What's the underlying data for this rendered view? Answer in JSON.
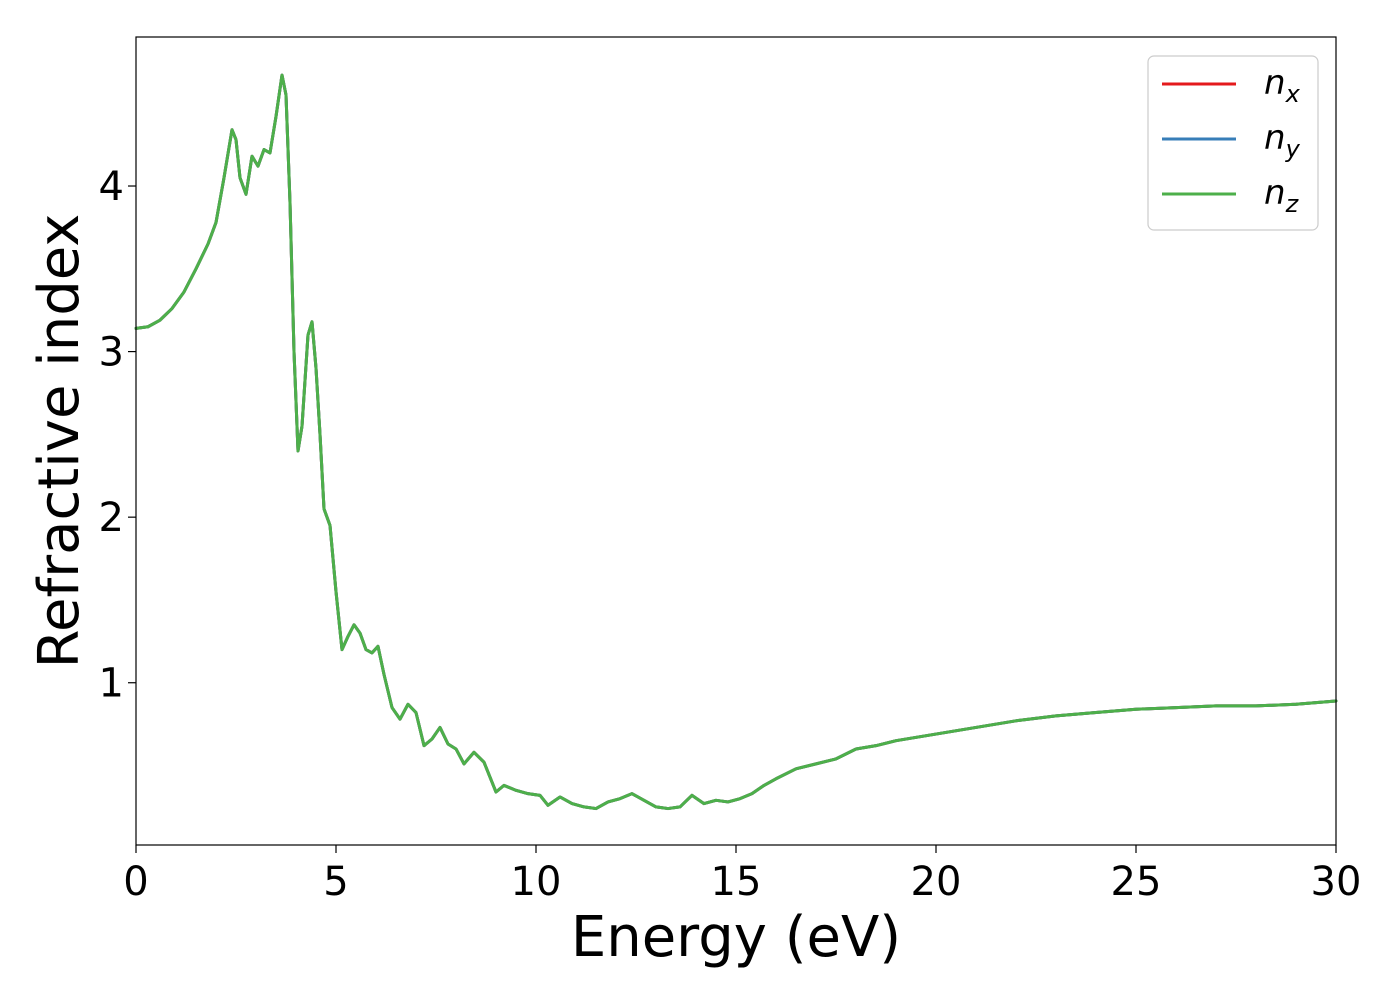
{
  "chart_data": {
    "type": "line",
    "title": "",
    "xlabel": "Energy (eV)",
    "ylabel": "Refractive index",
    "xlim": [
      0,
      30
    ],
    "ylim": [
      0.02,
      4.9
    ],
    "xticks": [
      0,
      5,
      10,
      15,
      20,
      25,
      30
    ],
    "yticks": [
      1,
      2,
      3,
      4
    ],
    "grid": false,
    "legend_position": "top-right",
    "x": [
      0,
      0.3,
      0.6,
      0.9,
      1.2,
      1.5,
      1.8,
      2.0,
      2.2,
      2.4,
      2.5,
      2.6,
      2.75,
      2.9,
      3.05,
      3.2,
      3.35,
      3.5,
      3.65,
      3.75,
      3.85,
      3.95,
      4.05,
      4.15,
      4.3,
      4.4,
      4.5,
      4.6,
      4.7,
      4.85,
      5.0,
      5.15,
      5.3,
      5.45,
      5.6,
      5.75,
      5.9,
      6.05,
      6.2,
      6.4,
      6.6,
      6.8,
      7.0,
      7.2,
      7.4,
      7.6,
      7.8,
      8.0,
      8.2,
      8.45,
      8.7,
      9.0,
      9.2,
      9.5,
      9.8,
      10.1,
      10.3,
      10.6,
      10.9,
      11.2,
      11.5,
      11.8,
      12.1,
      12.4,
      12.7,
      13.0,
      13.3,
      13.6,
      13.9,
      14.2,
      14.5,
      14.8,
      15.1,
      15.4,
      15.7,
      16.0,
      16.5,
      17.0,
      17.5,
      18.0,
      18.5,
      19.0,
      20.0,
      21.0,
      22.0,
      23.0,
      24.0,
      25.0,
      26.0,
      27.0,
      28.0,
      29.0,
      30.0
    ],
    "series": [
      {
        "name": "n_x",
        "color": "#e41a1c",
        "values": [
          3.14,
          3.15,
          3.19,
          3.26,
          3.36,
          3.5,
          3.65,
          3.78,
          4.05,
          4.34,
          4.28,
          4.05,
          3.95,
          4.18,
          4.12,
          4.22,
          4.2,
          4.42,
          4.67,
          4.55,
          3.9,
          3.0,
          2.4,
          2.55,
          3.1,
          3.18,
          2.9,
          2.5,
          2.05,
          1.95,
          1.55,
          1.2,
          1.28,
          1.35,
          1.3,
          1.2,
          1.18,
          1.22,
          1.05,
          0.85,
          0.78,
          0.87,
          0.82,
          0.62,
          0.66,
          0.73,
          0.63,
          0.6,
          0.51,
          0.58,
          0.52,
          0.34,
          0.38,
          0.35,
          0.33,
          0.32,
          0.26,
          0.31,
          0.27,
          0.25,
          0.24,
          0.28,
          0.3,
          0.33,
          0.29,
          0.25,
          0.24,
          0.25,
          0.32,
          0.27,
          0.29,
          0.28,
          0.3,
          0.33,
          0.38,
          0.42,
          0.48,
          0.51,
          0.54,
          0.6,
          0.62,
          0.65,
          0.69,
          0.73,
          0.77,
          0.8,
          0.82,
          0.84,
          0.85,
          0.86,
          0.86,
          0.87,
          0.89
        ]
      },
      {
        "name": "n_y",
        "color": "#377eb8",
        "values": [
          3.14,
          3.15,
          3.19,
          3.26,
          3.36,
          3.5,
          3.65,
          3.78,
          4.05,
          4.34,
          4.28,
          4.05,
          3.95,
          4.18,
          4.12,
          4.22,
          4.2,
          4.42,
          4.67,
          4.55,
          3.9,
          3.0,
          2.4,
          2.55,
          3.1,
          3.18,
          2.9,
          2.5,
          2.05,
          1.95,
          1.55,
          1.2,
          1.28,
          1.35,
          1.3,
          1.2,
          1.18,
          1.22,
          1.05,
          0.85,
          0.78,
          0.87,
          0.82,
          0.62,
          0.66,
          0.73,
          0.63,
          0.6,
          0.51,
          0.58,
          0.52,
          0.34,
          0.38,
          0.35,
          0.33,
          0.32,
          0.26,
          0.31,
          0.27,
          0.25,
          0.24,
          0.28,
          0.3,
          0.33,
          0.29,
          0.25,
          0.24,
          0.25,
          0.32,
          0.27,
          0.29,
          0.28,
          0.3,
          0.33,
          0.38,
          0.42,
          0.48,
          0.51,
          0.54,
          0.6,
          0.62,
          0.65,
          0.69,
          0.73,
          0.77,
          0.8,
          0.82,
          0.84,
          0.85,
          0.86,
          0.86,
          0.87,
          0.89
        ]
      },
      {
        "name": "n_z",
        "color": "#4daf4a",
        "values": [
          3.14,
          3.15,
          3.19,
          3.26,
          3.36,
          3.5,
          3.65,
          3.78,
          4.05,
          4.34,
          4.28,
          4.05,
          3.95,
          4.18,
          4.12,
          4.22,
          4.2,
          4.42,
          4.67,
          4.55,
          3.9,
          3.0,
          2.4,
          2.55,
          3.1,
          3.18,
          2.9,
          2.5,
          2.05,
          1.95,
          1.55,
          1.2,
          1.28,
          1.35,
          1.3,
          1.2,
          1.18,
          1.22,
          1.05,
          0.85,
          0.78,
          0.87,
          0.82,
          0.62,
          0.66,
          0.73,
          0.63,
          0.6,
          0.51,
          0.58,
          0.52,
          0.34,
          0.38,
          0.35,
          0.33,
          0.32,
          0.26,
          0.31,
          0.27,
          0.25,
          0.24,
          0.28,
          0.3,
          0.33,
          0.29,
          0.25,
          0.24,
          0.25,
          0.32,
          0.27,
          0.29,
          0.28,
          0.3,
          0.33,
          0.38,
          0.42,
          0.48,
          0.51,
          0.54,
          0.6,
          0.62,
          0.65,
          0.69,
          0.73,
          0.77,
          0.8,
          0.82,
          0.84,
          0.85,
          0.86,
          0.86,
          0.87,
          0.89
        ]
      }
    ],
    "legend": [
      {
        "base": "n",
        "sub": "x",
        "color": "#e41a1c"
      },
      {
        "base": "n",
        "sub": "y",
        "color": "#377eb8"
      },
      {
        "base": "n",
        "sub": "z",
        "color": "#4daf4a"
      }
    ]
  }
}
